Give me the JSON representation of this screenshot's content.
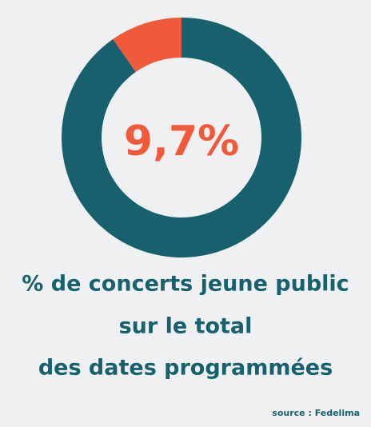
{
  "chart_data": {
    "type": "donut",
    "categories": [
      null,
      null
    ],
    "values": [
      9.7,
      90.3
    ],
    "value_labels": [
      "9,7%",
      null
    ],
    "colors": [
      "#f05a3a",
      "#17606e"
    ],
    "title_lines": [
      "% de concerts jeune public",
      "sur le total",
      "des dates programmées"
    ],
    "source": "source : Fedelima"
  }
}
